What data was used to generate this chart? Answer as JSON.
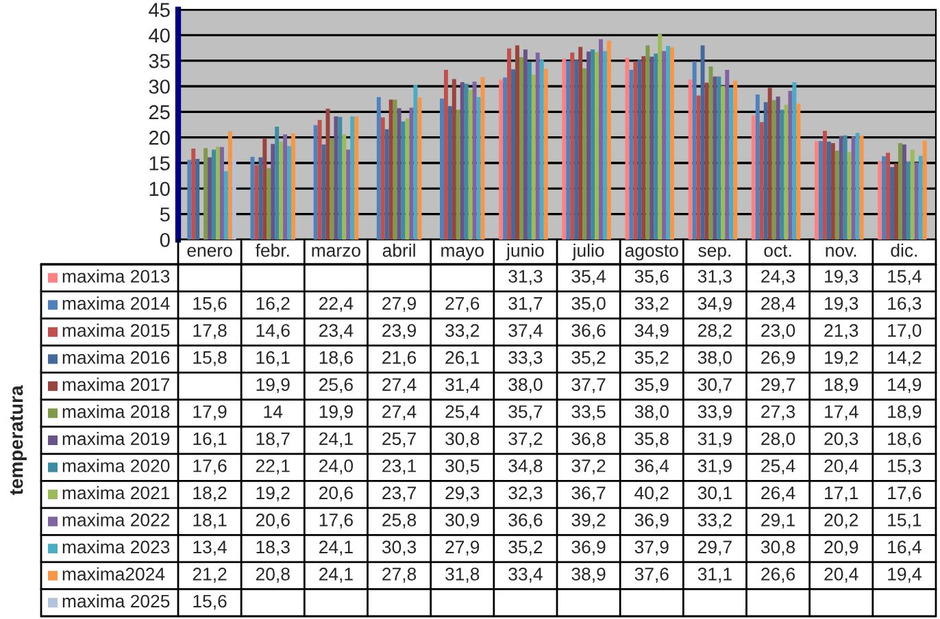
{
  "chart_data": {
    "type": "bar",
    "annotations": [
      "temperatura"
    ],
    "categories": [
      "enero",
      "febr.",
      "marzo",
      "abril",
      "mayo",
      "junio",
      "julio",
      "agosto",
      "sep.",
      "oct.",
      "nov.",
      "dic."
    ],
    "ylim": [
      0,
      45
    ],
    "yticks": [
      0,
      5,
      10,
      15,
      20,
      25,
      30,
      35,
      40,
      45
    ],
    "grid": "y",
    "legend": "left",
    "tick_labels": "y",
    "series": [
      {
        "name": "maxima 2013",
        "color": "#ff8080",
        "values": [
          null,
          null,
          null,
          null,
          null,
          31.3,
          35.4,
          35.6,
          31.3,
          24.3,
          19.3,
          15.4
        ],
        "value_labels": [
          null,
          null,
          null,
          null,
          null,
          "31,3",
          "35,4",
          "35,6",
          "31,3",
          "24,3",
          "19,3",
          "15,4"
        ]
      },
      {
        "name": "maxima 2014",
        "color": "#4f81bd",
        "values": [
          15.6,
          16.2,
          22.4,
          27.9,
          27.6,
          31.7,
          35.0,
          33.2,
          34.9,
          28.4,
          19.3,
          16.3
        ],
        "value_labels": [
          "15,6",
          "16,2",
          "22,4",
          "27,9",
          "27,6",
          "31,7",
          "35,0",
          "33,2",
          "34,9",
          "28,4",
          "19,3",
          "16,3"
        ]
      },
      {
        "name": "maxima 2015",
        "color": "#c0504d",
        "values": [
          17.8,
          14.6,
          23.4,
          23.9,
          33.2,
          37.4,
          36.6,
          34.9,
          28.2,
          23.0,
          21.3,
          17.0
        ],
        "value_labels": [
          "17,8",
          "14,6",
          "23,4",
          "23,9",
          "33,2",
          "37,4",
          "36,6",
          "34,9",
          "28,2",
          "23,0",
          "21,3",
          "17,0"
        ]
      },
      {
        "name": "maxima 2016",
        "color": "#44699b",
        "values": [
          15.8,
          16.1,
          18.6,
          21.6,
          26.1,
          33.3,
          35.2,
          35.2,
          38.0,
          26.9,
          19.2,
          14.2
        ],
        "value_labels": [
          "15,8",
          "16,1",
          "18,6",
          "21,6",
          "26,1",
          "33,3",
          "35,2",
          "35,2",
          "38,0",
          "26,9",
          "19,2",
          "14,2"
        ]
      },
      {
        "name": "maxima 2017",
        "color": "#9b433f",
        "values": [
          null,
          19.9,
          25.6,
          27.4,
          31.4,
          38.0,
          37.7,
          35.9,
          30.7,
          29.7,
          18.9,
          14.9
        ],
        "value_labels": [
          null,
          "19,9",
          "25,6",
          "27,4",
          "31,4",
          "38,0",
          "37,7",
          "35,9",
          "30,7",
          "29,7",
          "18,9",
          "14,9"
        ]
      },
      {
        "name": "maxima 2018",
        "color": "#7f9a48",
        "values": [
          17.9,
          14,
          19.9,
          27.4,
          25.4,
          35.7,
          33.5,
          38.0,
          33.9,
          27.3,
          17.4,
          18.9
        ],
        "value_labels": [
          "17,9",
          "14",
          "19,9",
          "27,4",
          "25,4",
          "35,7",
          "33,5",
          "38,0",
          "33,9",
          "27,3",
          "17,4",
          "18,9"
        ]
      },
      {
        "name": "maxima 2019",
        "color": "#6a5389",
        "values": [
          16.1,
          18.7,
          24.1,
          25.7,
          30.8,
          37.2,
          36.8,
          35.8,
          31.9,
          28.0,
          20.3,
          18.6
        ],
        "value_labels": [
          "16,1",
          "18,7",
          "24,1",
          "25,7",
          "30,8",
          "37,2",
          "36,8",
          "35,8",
          "31,9",
          "28,0",
          "20,3",
          "18,6"
        ]
      },
      {
        "name": "maxima 2020",
        "color": "#3e8ca3",
        "values": [
          17.6,
          22.1,
          24.0,
          23.1,
          30.5,
          34.8,
          37.2,
          36.4,
          31.9,
          25.4,
          20.4,
          15.3
        ],
        "value_labels": [
          "17,6",
          "22,1",
          "24,0",
          "23,1",
          "30,5",
          "34,8",
          "37,2",
          "36,4",
          "31,9",
          "25,4",
          "20,4",
          "15,3"
        ]
      },
      {
        "name": "maxima 2021",
        "color": "#9bbb59",
        "values": [
          18.2,
          19.2,
          20.6,
          23.7,
          29.3,
          32.3,
          36.7,
          40.2,
          30.1,
          26.4,
          17.1,
          17.6
        ],
        "value_labels": [
          "18,2",
          "19,2",
          "20,6",
          "23,7",
          "29,3",
          "32,3",
          "36,7",
          "40,2",
          "30,1",
          "26,4",
          "17,1",
          "17,6"
        ]
      },
      {
        "name": "maxima 2022",
        "color": "#8064a2",
        "values": [
          18.1,
          20.6,
          17.6,
          25.8,
          30.9,
          36.6,
          39.2,
          36.9,
          33.2,
          29.1,
          20.2,
          15.1
        ],
        "value_labels": [
          "18,1",
          "20,6",
          "17,6",
          "25,8",
          "30,9",
          "36,6",
          "39,2",
          "36,9",
          "33,2",
          "29,1",
          "20,2",
          "15,1"
        ]
      },
      {
        "name": "maxima 2023",
        "color": "#4bacc6",
        "values": [
          13.4,
          18.3,
          24.1,
          30.3,
          27.9,
          35.2,
          36.9,
          37.9,
          29.7,
          30.8,
          20.9,
          16.4
        ],
        "value_labels": [
          "13,4",
          "18,3",
          "24,1",
          "30,3",
          "27,9",
          "35,2",
          "36,9",
          "37,9",
          "29,7",
          "30,8",
          "20,9",
          "16,4"
        ]
      },
      {
        "name": "maxima2024",
        "color": "#f79646",
        "values": [
          21.2,
          20.8,
          24.1,
          27.8,
          31.8,
          33.4,
          38.9,
          37.6,
          31.1,
          26.6,
          20.4,
          19.4
        ],
        "value_labels": [
          "21,2",
          "20,8",
          "24,1",
          "27,8",
          "31,8",
          "33,4",
          "38,9",
          "37,6",
          "31,1",
          "26,6",
          "20,4",
          "19,4"
        ]
      },
      {
        "name": "maxima 2025",
        "color": "#b3c3dc",
        "values": [
          15.6,
          null,
          null,
          null,
          null,
          null,
          null,
          null,
          null,
          null,
          null,
          null
        ],
        "value_labels": [
          "15,6",
          null,
          null,
          null,
          null,
          null,
          null,
          null,
          null,
          null,
          null,
          null
        ]
      }
    ]
  }
}
